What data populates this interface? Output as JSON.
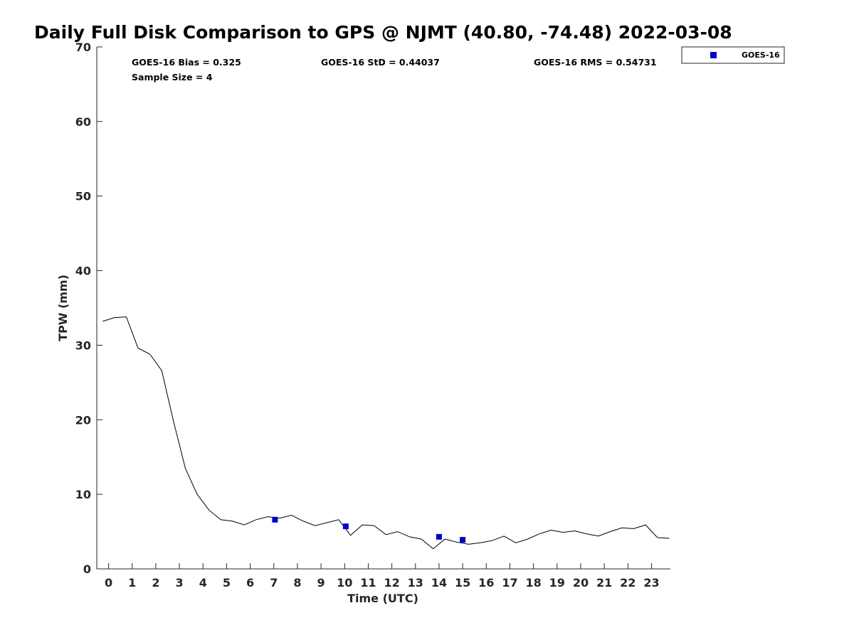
{
  "chart_data": {
    "type": "line",
    "title": "Daily Full Disk Comparison to GPS @ NJMT (40.80, -74.48) 2022-03-08",
    "xlabel": "Time (UTC)",
    "ylabel": "TPW (mm)",
    "xlim": [
      -0.5,
      23.8
    ],
    "ylim": [
      0,
      70
    ],
    "x_ticks": [
      0,
      1,
      2,
      3,
      4,
      5,
      6,
      7,
      8,
      9,
      10,
      11,
      12,
      13,
      14,
      15,
      16,
      17,
      18,
      19,
      20,
      21,
      22,
      23
    ],
    "y_ticks": [
      0,
      10,
      20,
      30,
      40,
      50,
      60,
      70
    ],
    "grid": false,
    "legend_position": "top-right (outside plot)",
    "stats": {
      "bias": "GOES-16 Bias = 0.325",
      "std": "GOES-16 StD = 0.44037",
      "rms": "GOES-16 RMS = 0.54731",
      "sample_size": "Sample Size = 4"
    },
    "series": [
      {
        "type": "line",
        "color": "#000000",
        "x": [
          -0.25,
          0.25,
          0.75,
          1.25,
          1.75,
          2.25,
          2.75,
          3.25,
          3.75,
          4.25,
          4.75,
          5.25,
          5.75,
          6.25,
          6.75,
          7.25,
          7.75,
          8.25,
          8.75,
          9.25,
          9.75,
          10.25,
          10.75,
          11.25,
          11.75,
          12.25,
          12.75,
          13.25,
          13.75,
          14.25,
          14.75,
          15.25,
          15.75,
          16.25,
          16.75,
          17.25,
          17.75,
          18.25,
          18.75,
          19.25,
          19.75,
          20.25,
          20.75,
          21.25,
          21.75,
          22.25,
          22.75,
          23.25,
          23.75
        ],
        "y": [
          33.2,
          33.7,
          33.8,
          29.6,
          28.8,
          26.6,
          19.8,
          13.5,
          10.0,
          7.9,
          6.6,
          6.4,
          5.9,
          6.6,
          7.0,
          6.8,
          7.2,
          6.4,
          5.8,
          6.2,
          6.6,
          4.5,
          5.9,
          5.8,
          4.6,
          5.0,
          4.3,
          4.0,
          2.7,
          4.0,
          3.6,
          3.3,
          3.5,
          3.8,
          4.4,
          3.5,
          4.0,
          4.7,
          5.2,
          4.9,
          5.1,
          4.7,
          4.4,
          5.0,
          5.5,
          5.4,
          5.9,
          4.2,
          4.1
        ]
      },
      {
        "type": "scatter",
        "name": "GOES-16",
        "color": "#0000cc",
        "x": [
          7.05,
          10.05,
          14.0,
          15.0
        ],
        "y": [
          6.6,
          5.7,
          4.3,
          3.9
        ]
      }
    ]
  }
}
